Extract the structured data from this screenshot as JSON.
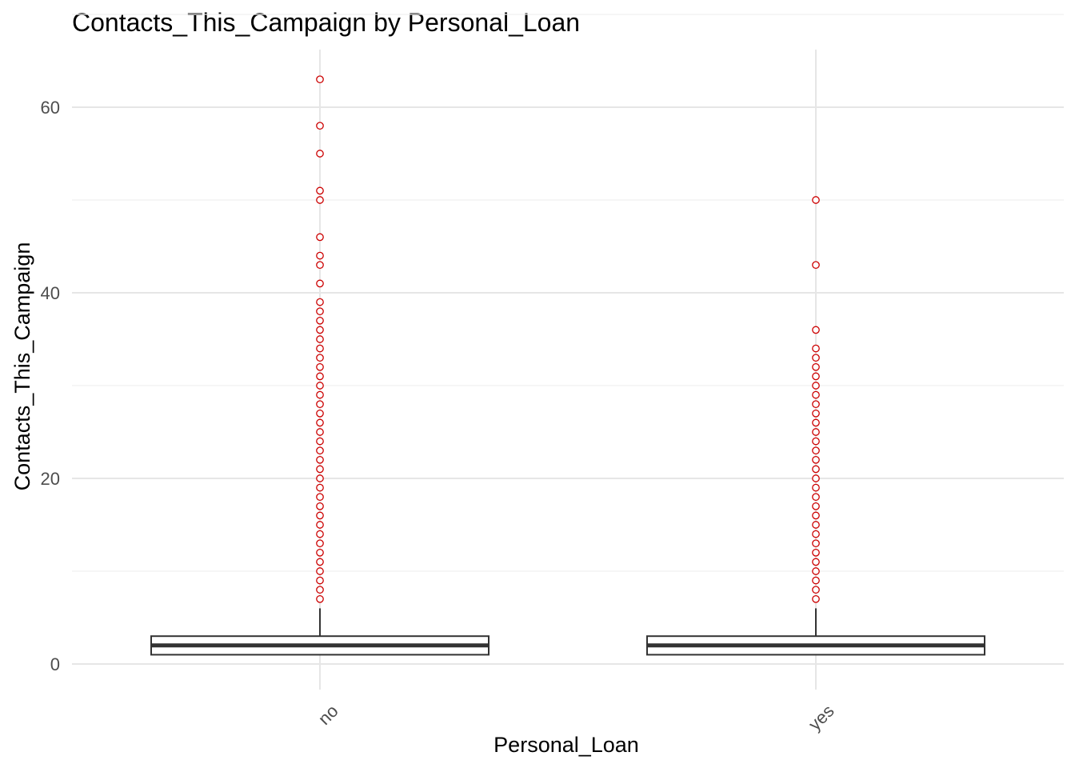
{
  "chart_data": {
    "type": "boxplot",
    "title": "Contacts_This_Campaign by Personal_Loan",
    "xlabel": "Personal_Loan",
    "ylabel": "Contacts_This_Campaign",
    "categories": [
      "no",
      "yes"
    ],
    "ylim": [
      -3,
      66
    ],
    "yticks": [
      0,
      20,
      40,
      60
    ],
    "grid": true,
    "outlier_color": "#cc0000",
    "box_color": "#333333",
    "boxes": [
      {
        "category": "no",
        "q1": 1,
        "median": 2,
        "q3": 3,
        "whisker_low": 1,
        "whisker_high": 6,
        "outliers": [
          7,
          8,
          9,
          10,
          11,
          12,
          13,
          14,
          15,
          16,
          17,
          18,
          19,
          20,
          21,
          22,
          23,
          24,
          25,
          26,
          27,
          28,
          29,
          30,
          31,
          32,
          33,
          34,
          35,
          36,
          37,
          38,
          39,
          41,
          43,
          44,
          46,
          50,
          51,
          55,
          58,
          63
        ]
      },
      {
        "category": "yes",
        "q1": 1,
        "median": 2,
        "q3": 3,
        "whisker_low": 1,
        "whisker_high": 6,
        "outliers": [
          7,
          8,
          9,
          10,
          11,
          12,
          13,
          14,
          15,
          16,
          17,
          18,
          19,
          20,
          21,
          22,
          23,
          24,
          25,
          26,
          27,
          28,
          29,
          30,
          31,
          32,
          33,
          34,
          36,
          43,
          50
        ]
      }
    ]
  }
}
